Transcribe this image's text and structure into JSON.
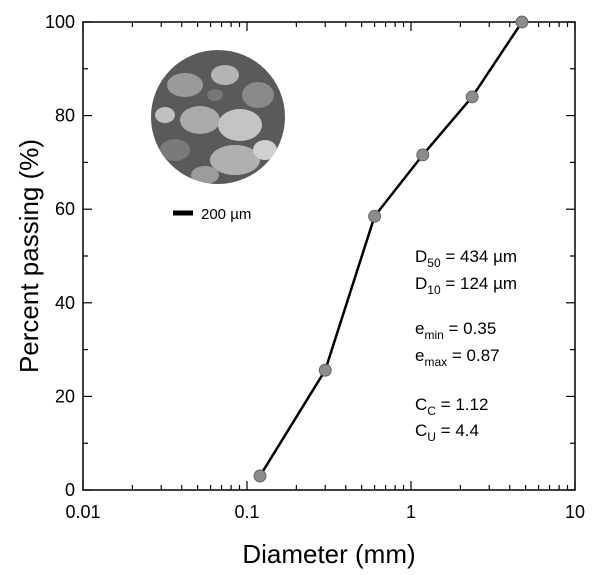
{
  "chart_data": {
    "type": "line",
    "xlabel": "Diameter (mm)",
    "ylabel": "Percent passing (%)",
    "x": [
      0.12,
      0.3,
      0.6,
      1.18,
      2.36,
      4.75
    ],
    "series": [
      {
        "color": "#000000",
        "marker_color": "#8c8c8c",
        "values": [
          3,
          25.6,
          58.5,
          71.6,
          84,
          100
        ]
      }
    ],
    "xscale": "log",
    "xlim": [
      0.01,
      10
    ],
    "ylim": [
      0,
      100
    ],
    "xticks": [
      0.01,
      0.1,
      1,
      10
    ],
    "yticks": [
      0,
      20,
      40,
      60,
      80,
      100
    ],
    "annotations": [
      {
        "main": "D",
        "sub": "50",
        "rest": " = 434 µm"
      },
      {
        "main": "D",
        "sub": "10",
        "rest": " = 124 µm"
      },
      {
        "main": "e",
        "sub": "min",
        "rest": " = 0.35"
      },
      {
        "main": "e",
        "sub": "max",
        "rest": " = 0.87"
      },
      {
        "main": "C",
        "sub": "C",
        "rest": " = 1.12"
      },
      {
        "main": "C",
        "sub": "U",
        "rest": " = 4.4"
      }
    ],
    "scale_bar_label": "200 µm"
  }
}
